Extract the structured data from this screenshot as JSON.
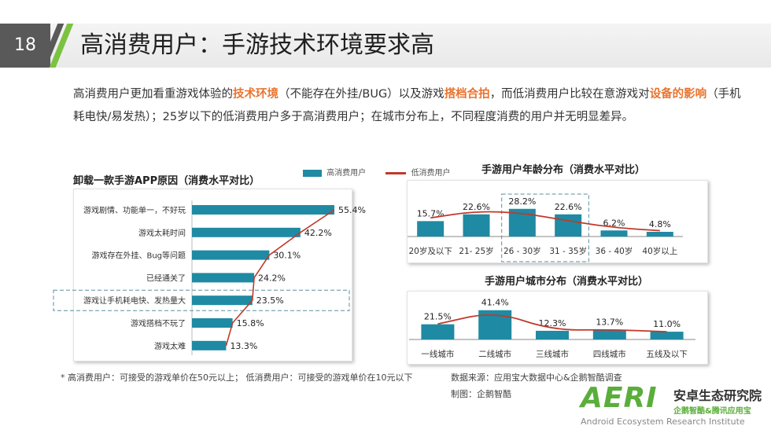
{
  "header": {
    "page_number": "18",
    "title": "高消费用户：手游技术环境要求高"
  },
  "intro": {
    "p1": "高消费用户更加看重游戏体验的",
    "h1": "技术环境",
    "p2": "（不能存在外挂/BUG）以及游戏",
    "h2": "搭档合拍",
    "p3": "，而低消费用户比较在意游戏对",
    "h3": "设备的影响",
    "p4": "（手机耗电快/易发热）；25岁以下的低消费用户多于高消费用户；在城市分布上，不同程度消费的用户并无明显差异。"
  },
  "legend": {
    "high": "高消费用户",
    "low": "低消费用户"
  },
  "colors": {
    "bar": "#1f8aa3",
    "line": "#c0392b",
    "accent": "#e8742f",
    "brand": "#5aae3a"
  },
  "chart_data": [
    {
      "type": "bar",
      "orientation": "horizontal",
      "title": "卸载一款手游APP原因（消费水平对比）",
      "categories": [
        "游戏剧情、功能单一，不好玩",
        "游戏太耗时间",
        "游戏存在外挂、Bug等问题",
        "已经通关了",
        "游戏让手机耗电快、发热量大",
        "游戏搭档不玩了",
        "游戏太难"
      ],
      "series": [
        {
          "name": "高消费用户",
          "values": [
            55.4,
            42.2,
            30.1,
            24.2,
            23.5,
            15.8,
            13.3
          ],
          "labels": [
            "55.4%",
            "42.2%",
            "30.1%",
            "24.2%",
            "23.5%",
            "15.8%",
            "13.3%"
          ]
        },
        {
          "name": "低消费用户",
          "values": [
            55.4,
            42.2,
            30.1,
            24.2,
            23.5,
            15.8,
            13.3
          ]
        }
      ],
      "xlim": [
        0,
        60
      ],
      "highlight_index": 4
    },
    {
      "type": "bar",
      "title": "手游用户年龄分布（消费水平对比）",
      "categories": [
        "20岁及以下",
        "21- 25岁",
        "26 - 30岁",
        "31 - 35岁",
        "36 - 40岁",
        "40岁以上"
      ],
      "series": [
        {
          "name": "高消费用户",
          "values": [
            15.7,
            22.6,
            28.2,
            22.6,
            6.2,
            4.8
          ],
          "labels": [
            "15.7%",
            "22.6%",
            "28.2%",
            "22.6%",
            "6.2%",
            "4.8%"
          ]
        },
        {
          "name": "低消费用户",
          "values": [
            19.0,
            26.0,
            24.0,
            16.0,
            9.0,
            6.0
          ]
        }
      ],
      "ylim": [
        0,
        40
      ],
      "highlight_range": [
        2,
        3
      ]
    },
    {
      "type": "bar",
      "title": "手游用户城市分布（消费水平对比）",
      "categories": [
        "一线城市",
        "二线城市",
        "三线城市",
        "四线城市",
        "五线及以下"
      ],
      "series": [
        {
          "name": "高消费用户",
          "values": [
            21.5,
            41.4,
            12.3,
            13.7,
            11.0
          ],
          "labels": [
            "21.5%",
            "41.4%",
            "12.3%",
            "13.7%",
            "11.0%"
          ]
        },
        {
          "name": "低消费用户",
          "values": [
            22.0,
            40.0,
            13.0,
            14.0,
            11.0
          ]
        }
      ],
      "ylim": [
        0,
        50
      ]
    }
  ],
  "footer": {
    "note": "* 高消费用户：可接受的游戏单价在50元以上； 低消费用户：可接受的游戏单价在10元以下",
    "source": "数据来源：应用宝大数据中心&企鹅智酷调查",
    "maker": "制图：企鹅智酷"
  },
  "logo": {
    "mark": "AERI",
    "cn_name": "安卓生态研究院",
    "cn_sub": "企鹅智酷&腾讯应用宝",
    "en_name": "Android Ecosystem Research Institute"
  }
}
